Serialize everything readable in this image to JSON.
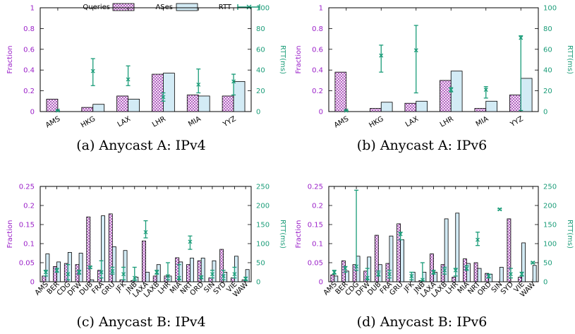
{
  "legend": {
    "queries": "Queries",
    "ases": "ASes",
    "rtt": "RTT"
  },
  "colors": {
    "fraction_axis": "#9a1fc8",
    "rtt_axis": "#1a9c78",
    "queries_hatch": "#9b2fae",
    "ases_fill": "#d3ebf5",
    "rtt_series": "#1a9c78"
  },
  "chart_data": [
    {
      "type": "bar",
      "caption": "(a) Anycast A: IPv4",
      "ylabel": "Fraction",
      "y2label": "RTT(ms)",
      "ylim": [
        0,
        1
      ],
      "yticks": [
        0,
        0.2,
        0.4,
        0.6,
        0.8,
        1
      ],
      "y2lim": [
        0,
        100
      ],
      "y2ticks": [
        0,
        20,
        40,
        60,
        80,
        100
      ],
      "categories": [
        "AMS",
        "HKG",
        "LAX",
        "LHR",
        "MIA",
        "YYZ"
      ],
      "series": [
        {
          "name": "Queries",
          "values": [
            0.12,
            0.04,
            0.15,
            0.36,
            0.16,
            0.15
          ]
        },
        {
          "name": "ASes",
          "values": [
            0.0,
            0.07,
            0.12,
            0.37,
            0.15,
            0.29
          ]
        },
        {
          "name": "RTT",
          "values": [
            1,
            39,
            31,
            14,
            26,
            29
          ],
          "err_low": [
            1,
            25,
            25,
            10,
            18,
            16
          ],
          "err_high": [
            1,
            51,
            44,
            18,
            41,
            36
          ]
        }
      ]
    },
    {
      "type": "bar",
      "caption": "(b) Anycast A: IPv6",
      "ylabel": "Fraction",
      "y2label": "RTT(ms)",
      "ylim": [
        0,
        1
      ],
      "yticks": [
        0,
        0.2,
        0.4,
        0.6,
        0.8,
        1
      ],
      "y2lim": [
        0,
        100
      ],
      "y2ticks": [
        0,
        20,
        40,
        60,
        80,
        100
      ],
      "categories": [
        "AMS",
        "HKG",
        "LAX",
        "LHR",
        "MIA",
        "YYZ"
      ],
      "series": [
        {
          "name": "Queries",
          "values": [
            0.38,
            0.03,
            0.08,
            0.3,
            0.03,
            0.16
          ]
        },
        {
          "name": "ASes",
          "values": [
            0.0,
            0.09,
            0.1,
            0.39,
            0.1,
            0.32
          ]
        },
        {
          "name": "RTT",
          "values": [
            1,
            54,
            59,
            21,
            21,
            71
          ],
          "err_low": [
            1,
            38,
            18,
            19,
            13,
            1
          ],
          "err_high": [
            1,
            64,
            83,
            23,
            24,
            73
          ]
        }
      ]
    },
    {
      "type": "bar",
      "caption": "(c) Anycast B: IPv4",
      "ylabel": "Fraction",
      "y2label": "RTT(ms)",
      "ylim": [
        0,
        0.25
      ],
      "yticks": [
        0,
        0.05,
        0.1,
        0.15,
        0.2,
        0.25
      ],
      "y2lim": [
        0,
        250
      ],
      "y2ticks": [
        0,
        50,
        100,
        150,
        200,
        250
      ],
      "categories": [
        "AMS",
        "BER",
        "CDG",
        "DFW",
        "DUB",
        "FRA",
        "GRU",
        "JFK",
        "JNB",
        "LAXA",
        "LAXB",
        "LHR",
        "MIA",
        "NRT",
        "ORD",
        "SIN",
        "SYD",
        "VIE",
        "WAW"
      ],
      "series": [
        {
          "name": "Queries",
          "values": [
            0.015,
            0.04,
            0.048,
            0.045,
            0.17,
            0.03,
            0.178,
            0.005,
            0.003,
            0.107,
            0.015,
            0.015,
            0.063,
            0.045,
            0.055,
            0.01,
            0.085,
            0.01,
            0.005
          ]
        },
        {
          "name": "ASes",
          "values": [
            0.073,
            0.052,
            0.077,
            0.075,
            0.005,
            0.173,
            0.092,
            0.082,
            0.012,
            0.025,
            0.045,
            0.015,
            0.052,
            0.062,
            0.062,
            0.055,
            0.025,
            0.067,
            0.032
          ]
        },
        {
          "name": "RTT",
          "values": [
            25,
            30,
            20,
            25,
            38,
            25,
            28,
            20,
            10,
            130,
            25,
            15,
            10,
            105,
            12,
            20,
            15,
            20,
            8
          ],
          "err_low": [
            15,
            25,
            5,
            20,
            35,
            10,
            20,
            5,
            3,
            115,
            20,
            5,
            5,
            85,
            8,
            10,
            5,
            10,
            3
          ],
          "err_high": [
            30,
            35,
            45,
            30,
            40,
            55,
            38,
            38,
            38,
            160,
            30,
            50,
            45,
            120,
            15,
            30,
            30,
            38,
            12
          ]
        }
      ]
    },
    {
      "type": "bar",
      "caption": "(d) Anycast B: IPv6",
      "ylabel": "Fraction",
      "y2label": "RTT(ms)",
      "ylim": [
        0,
        0.25
      ],
      "yticks": [
        0,
        0.05,
        0.1,
        0.15,
        0.2,
        0.25
      ],
      "y2lim": [
        0,
        250
      ],
      "y2ticks": [
        0,
        50,
        100,
        150,
        200,
        250
      ],
      "categories": [
        "AMS",
        "BER",
        "CDG",
        "DFW",
        "DUB",
        "FRA",
        "GRU",
        "JFK",
        "JNB",
        "LAXA",
        "LAXB",
        "LHR",
        "MIA",
        "NRT",
        "ORD",
        "SIN",
        "SYD",
        "VIE",
        "WAW"
      ],
      "series": [
        {
          "name": "Queries",
          "values": [
            0.018,
            0.055,
            0.045,
            0.028,
            0.122,
            0.048,
            0.152,
            0.0,
            0.003,
            0.073,
            0.045,
            0.012,
            0.06,
            0.05,
            0.022,
            0.0,
            0.165,
            0.012,
            0.0
          ]
        },
        {
          "name": "ASes",
          "values": [
            0.015,
            0.028,
            0.067,
            0.065,
            0.045,
            0.12,
            0.11,
            0.025,
            0.025,
            0.025,
            0.165,
            0.18,
            0.048,
            0.035,
            0.02,
            0.038,
            0.0,
            0.102,
            0.043
          ]
        },
        {
          "name": "RTT",
          "values": [
            25,
            35,
            40,
            10,
            20,
            20,
            125,
            15,
            5,
            25,
            30,
            30,
            35,
            110,
            15,
            190,
            20,
            20,
            50
          ],
          "err_low": [
            20,
            25,
            30,
            5,
            15,
            10,
            110,
            5,
            3,
            20,
            20,
            15,
            30,
            95,
            10,
            188,
            10,
            15,
            48
          ],
          "err_high": [
            30,
            40,
            240,
            35,
            28,
            30,
            130,
            25,
            50,
            30,
            38,
            35,
            42,
            130,
            20,
            192,
            35,
            25,
            52
          ]
        }
      ]
    }
  ]
}
